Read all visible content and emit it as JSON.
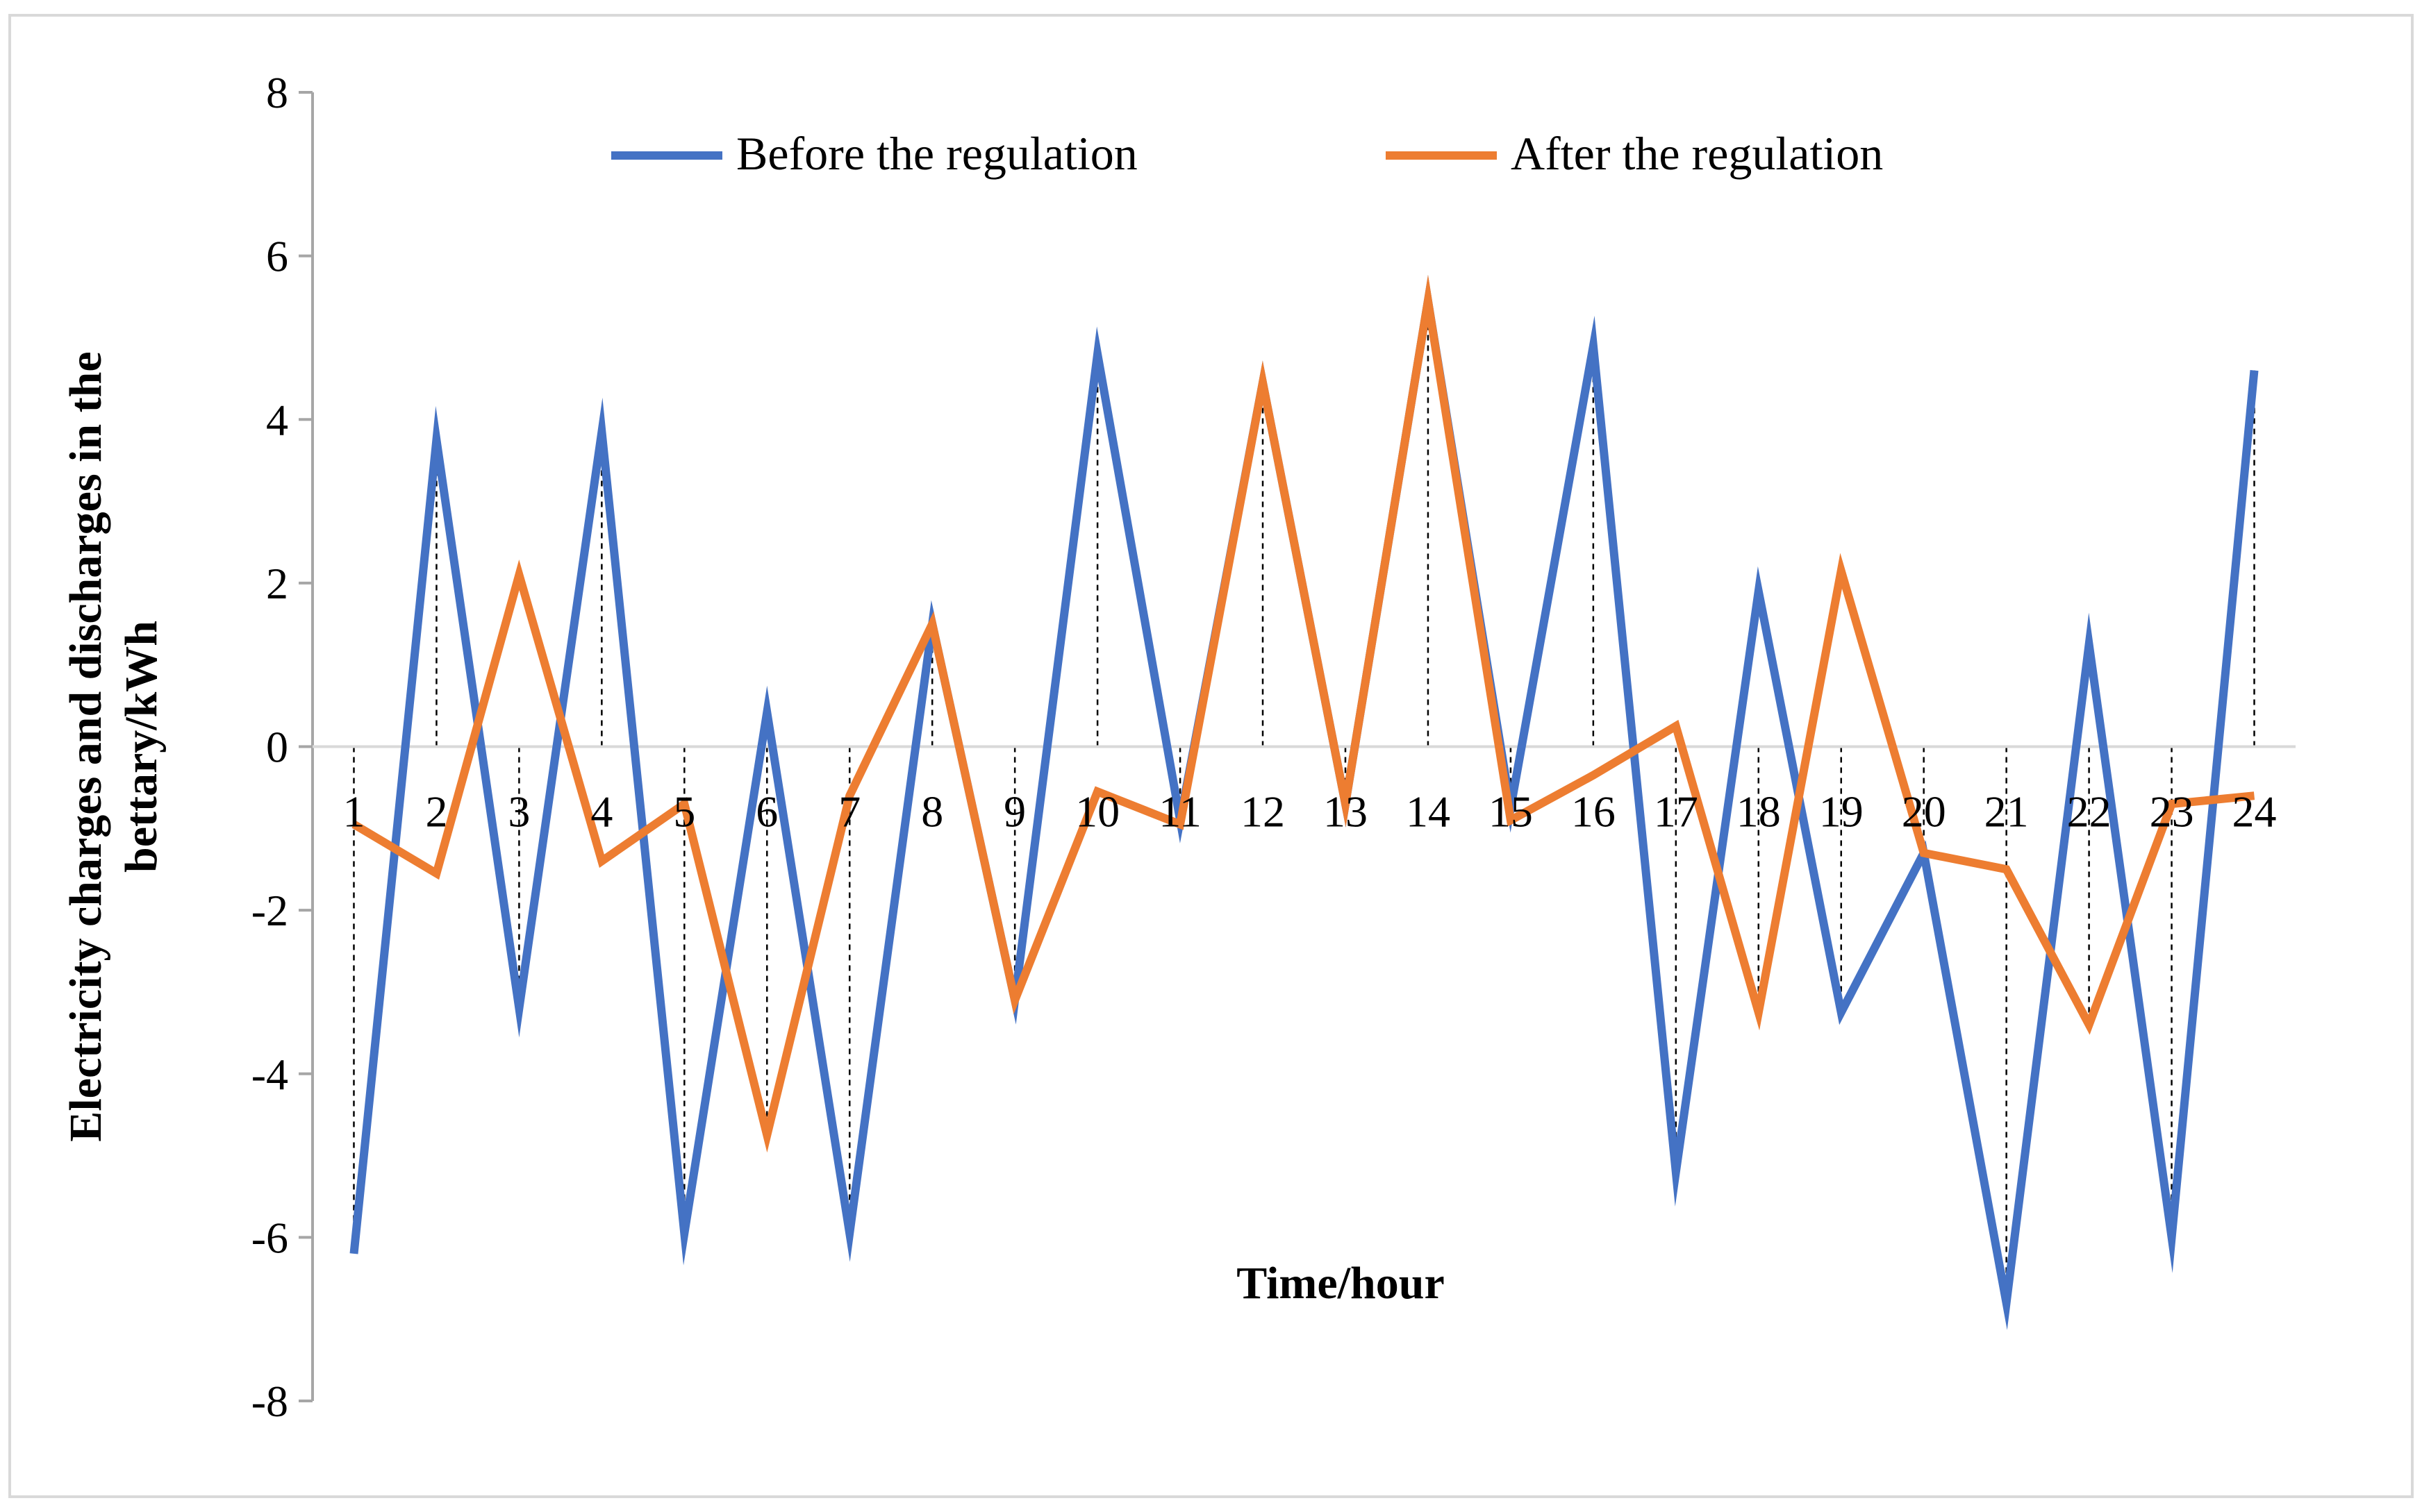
{
  "chart_data": {
    "type": "line",
    "title": "",
    "xlabel": "Time/hour",
    "ylabel": "Electricity charges and discharges in the bettary/kWh",
    "ylim": [
      -8,
      8
    ],
    "yticks": [
      -8,
      -6,
      -4,
      -2,
      0,
      2,
      4,
      6,
      8
    ],
    "categories": [
      "1",
      "2",
      "3",
      "4",
      "5",
      "6",
      "7",
      "8",
      "9",
      "10",
      "11",
      "12",
      "13",
      "14",
      "15",
      "16",
      "17",
      "18",
      "19",
      "20",
      "21",
      "22",
      "23",
      "24"
    ],
    "series": [
      {
        "name": "Before the regulation",
        "color": "#4472C4",
        "values": [
          -6.2,
          3.75,
          -3.2,
          3.85,
          -5.95,
          0.42,
          -5.95,
          1.5,
          -3.1,
          4.8,
          -0.9,
          4.45,
          -0.7,
          5.45,
          -0.75,
          4.9,
          -5.2,
          1.9,
          -3.25,
          -1.3,
          -6.8,
          1.25,
          -6.0,
          4.6
        ]
      },
      {
        "name": "After the regulation",
        "color": "#ED7D31",
        "values": [
          -0.95,
          -1.55,
          2.1,
          -1.4,
          -0.7,
          -4.75,
          -0.6,
          1.5,
          -3.1,
          -0.55,
          -0.95,
          4.45,
          -0.7,
          5.45,
          -0.9,
          -0.35,
          0.25,
          -3.25,
          2.15,
          -1.3,
          -1.5,
          -3.4,
          -0.7,
          -0.6
        ]
      }
    ],
    "grid": false,
    "drop_lines": true,
    "legend_position": "top"
  }
}
